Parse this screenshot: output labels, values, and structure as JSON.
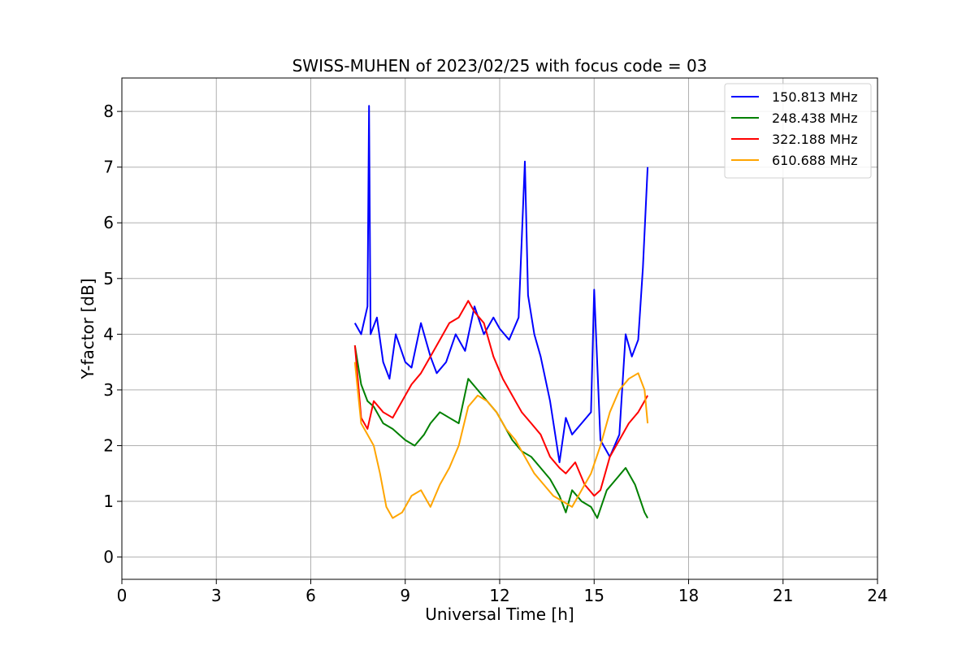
{
  "chart_data": {
    "type": "line",
    "title": "SWISS-MUHEN of 2023/02/25 with focus code = 03",
    "xlabel": "Universal Time [h]",
    "ylabel": "Y-factor [dB]",
    "xlim": [
      0,
      24
    ],
    "ylim": [
      -0.4,
      8.6
    ],
    "xticks": [
      0,
      3,
      6,
      9,
      12,
      15,
      18,
      21,
      24
    ],
    "xtick_labels": [
      "0",
      "3",
      "6",
      "9",
      "12",
      "15",
      "18",
      "21",
      "24"
    ],
    "yticks": [
      0,
      1,
      2,
      3,
      4,
      5,
      6,
      7,
      8
    ],
    "ytick_labels": [
      "0",
      "1",
      "2",
      "3",
      "4",
      "5",
      "6",
      "7",
      "8"
    ],
    "grid": true,
    "legend_position": "top-right",
    "series": [
      {
        "name": "150.813 MHz",
        "color": "#0000ff",
        "x": [
          7.4,
          7.6,
          7.8,
          7.85,
          7.9,
          8.1,
          8.3,
          8.5,
          8.7,
          9.0,
          9.2,
          9.5,
          9.8,
          10.0,
          10.3,
          10.6,
          10.9,
          11.2,
          11.5,
          11.8,
          12.0,
          12.3,
          12.6,
          12.8,
          12.9,
          13.1,
          13.3,
          13.6,
          13.9,
          14.1,
          14.3,
          14.6,
          14.9,
          15.0,
          15.2,
          15.5,
          15.8,
          16.0,
          16.2,
          16.4,
          16.55,
          16.7
        ],
        "y": [
          4.2,
          4.0,
          4.5,
          8.1,
          4.0,
          4.3,
          3.5,
          3.2,
          4.0,
          3.5,
          3.4,
          4.2,
          3.6,
          3.3,
          3.5,
          4.0,
          3.7,
          4.5,
          4.0,
          4.3,
          4.1,
          3.9,
          4.3,
          7.1,
          4.7,
          4.0,
          3.6,
          2.8,
          1.7,
          2.5,
          2.2,
          2.4,
          2.6,
          4.8,
          2.1,
          1.8,
          2.2,
          4.0,
          3.6,
          3.9,
          5.2,
          7.0
        ]
      },
      {
        "name": "248.438 MHz",
        "color": "#008000",
        "x": [
          7.4,
          7.6,
          7.8,
          8.0,
          8.3,
          8.6,
          9.0,
          9.3,
          9.6,
          9.8,
          10.1,
          10.4,
          10.7,
          11.0,
          11.3,
          11.6,
          11.9,
          12.1,
          12.4,
          12.7,
          13.0,
          13.3,
          13.6,
          13.9,
          14.1,
          14.3,
          14.6,
          14.9,
          15.1,
          15.4,
          15.7,
          16.0,
          16.3,
          16.6,
          16.7
        ],
        "y": [
          3.8,
          3.1,
          2.8,
          2.7,
          2.4,
          2.3,
          2.1,
          2.0,
          2.2,
          2.4,
          2.6,
          2.5,
          2.4,
          3.2,
          3.0,
          2.8,
          2.6,
          2.4,
          2.1,
          1.9,
          1.8,
          1.6,
          1.4,
          1.1,
          0.8,
          1.2,
          1.0,
          0.9,
          0.7,
          1.2,
          1.4,
          1.6,
          1.3,
          0.8,
          0.7
        ]
      },
      {
        "name": "322.188 MHz",
        "color": "#ff0000",
        "x": [
          7.4,
          7.6,
          7.8,
          8.0,
          8.3,
          8.6,
          8.9,
          9.2,
          9.5,
          9.8,
          10.1,
          10.4,
          10.7,
          11.0,
          11.2,
          11.5,
          11.8,
          12.1,
          12.4,
          12.7,
          13.0,
          13.3,
          13.6,
          13.9,
          14.1,
          14.4,
          14.7,
          15.0,
          15.2,
          15.5,
          15.8,
          16.1,
          16.4,
          16.6,
          16.7
        ],
        "y": [
          3.8,
          2.5,
          2.3,
          2.8,
          2.6,
          2.5,
          2.8,
          3.1,
          3.3,
          3.6,
          3.9,
          4.2,
          4.3,
          4.6,
          4.4,
          4.2,
          3.6,
          3.2,
          2.9,
          2.6,
          2.4,
          2.2,
          1.8,
          1.6,
          1.5,
          1.7,
          1.3,
          1.1,
          1.2,
          1.8,
          2.1,
          2.4,
          2.6,
          2.8,
          2.9
        ]
      },
      {
        "name": "610.688 MHz",
        "color": "#ffa500",
        "x": [
          7.4,
          7.6,
          7.8,
          8.0,
          8.2,
          8.4,
          8.6,
          8.9,
          9.2,
          9.5,
          9.8,
          10.1,
          10.4,
          10.7,
          11.0,
          11.3,
          11.6,
          11.9,
          12.2,
          12.5,
          12.8,
          13.1,
          13.4,
          13.7,
          14.0,
          14.3,
          14.6,
          14.9,
          15.2,
          15.5,
          15.8,
          16.1,
          16.4,
          16.6,
          16.7
        ],
        "y": [
          3.5,
          2.4,
          2.2,
          2.0,
          1.5,
          0.9,
          0.7,
          0.8,
          1.1,
          1.2,
          0.9,
          1.3,
          1.6,
          2.0,
          2.7,
          2.9,
          2.8,
          2.6,
          2.3,
          2.1,
          1.8,
          1.5,
          1.3,
          1.1,
          1.0,
          0.9,
          1.2,
          1.5,
          2.0,
          2.6,
          3.0,
          3.2,
          3.3,
          3.0,
          2.4
        ]
      }
    ]
  }
}
